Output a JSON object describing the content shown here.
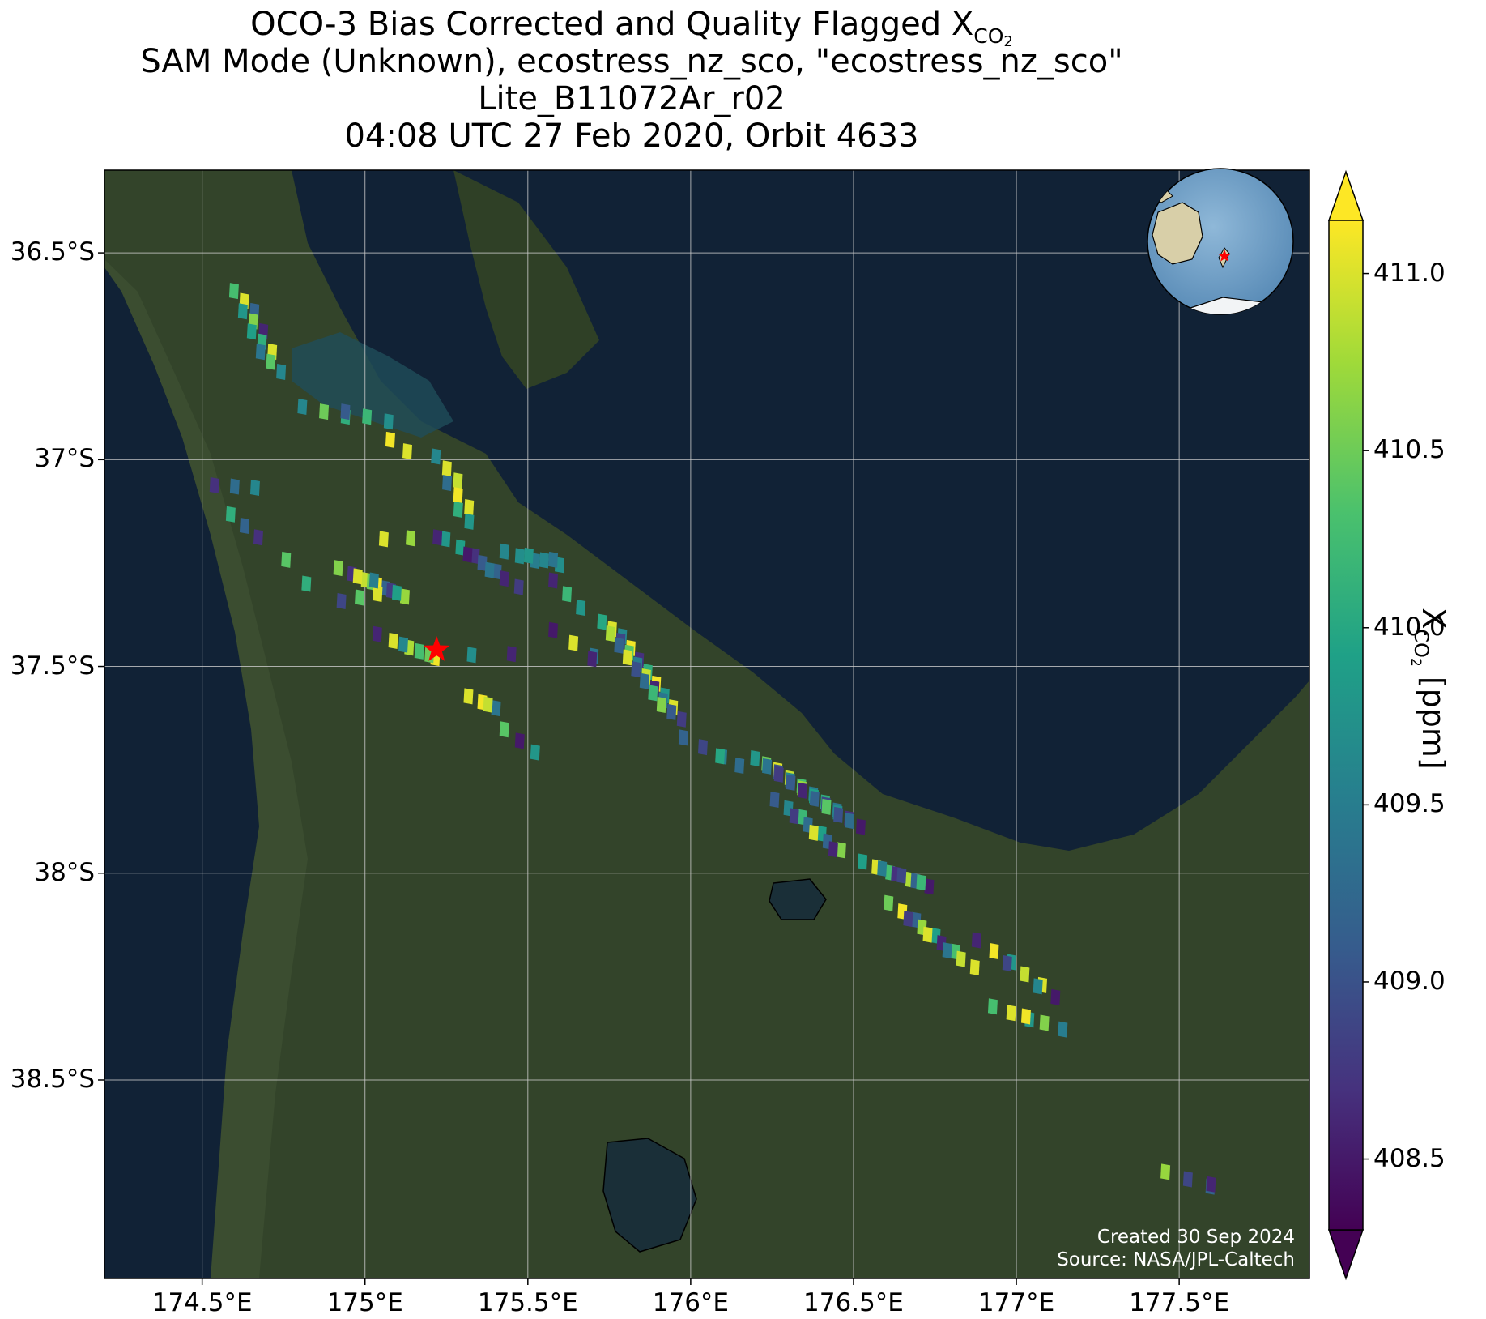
{
  "title": {
    "line1_prefix": "OCO-3 Bias Corrected and Quality Flagged X",
    "line1_sub": "CO",
    "line1_subsub": "2",
    "line2": "SAM Mode (Unknown), ecostress_nz_sco, \"ecostress_nz_sco\"",
    "line3": "Lite_B11072Ar_r02",
    "line4": "04:08 UTC 27 Feb 2020, Orbit 4633"
  },
  "map": {
    "lon_range": [
      174.2,
      177.9
    ],
    "lat_range": [
      -38.98,
      -36.3
    ],
    "x_ticks": [
      {
        "value": 174.5,
        "label": "174.5°E"
      },
      {
        "value": 175.0,
        "label": "175°E"
      },
      {
        "value": 175.5,
        "label": "175.5°E"
      },
      {
        "value": 176.0,
        "label": "176°E"
      },
      {
        "value": 176.5,
        "label": "176.5°E"
      },
      {
        "value": 177.0,
        "label": "177°E"
      },
      {
        "value": 177.5,
        "label": "177.5°E"
      }
    ],
    "y_ticks": [
      {
        "value": -36.5,
        "label": "36.5°S"
      },
      {
        "value": -37.0,
        "label": "37°S"
      },
      {
        "value": -37.5,
        "label": "37.5°S"
      },
      {
        "value": -38.0,
        "label": "38°S"
      },
      {
        "value": -38.5,
        "label": "38.5°S"
      }
    ],
    "grid": true,
    "target": {
      "lon": 175.22,
      "lat": -37.46,
      "color": "#ff0000"
    },
    "colors": {
      "ocean": "#112236",
      "land": "#33442a",
      "gridline": "#cccccc"
    }
  },
  "colorbar": {
    "min": 408.3,
    "max": 411.15,
    "ticks": [
      408.5,
      409.0,
      409.5,
      410.0,
      410.5,
      411.0
    ],
    "tick_labels": [
      "408.5",
      "409.0",
      "409.5",
      "410.0",
      "410.5",
      "411.0"
    ],
    "label_prefix": "X",
    "label_sub": "CO",
    "label_subsub": "2",
    "label_suffix": " [ppm]",
    "colormap": "viridis"
  },
  "inset_globe": {
    "target_color": "#ff0000"
  },
  "credit": {
    "line1": "Created 30 Sep 2024",
    "line2": "Source: NASA/JPL-Caltech"
  },
  "chart_data": {
    "type": "heatmap",
    "variable": "XCO2",
    "units": "ppm",
    "segments": [
      {
        "from": [
          174.62,
          -36.6
        ],
        "to": [
          174.72,
          -36.78
        ],
        "values": [
          410.3,
          411.0,
          409.2,
          409.8,
          410.6,
          408.6,
          409.9,
          410.1,
          411.0,
          409.4,
          410.4,
          409.6
        ]
      },
      {
        "from": [
          174.83,
          -36.88
        ],
        "to": [
          175.05,
          -36.9
        ],
        "values": [
          409.6,
          410.5,
          410.1,
          409.1,
          410.2,
          409.7
        ]
      },
      {
        "from": [
          175.1,
          -36.96
        ],
        "to": [
          175.13,
          -36.98
        ],
        "values": [
          411.1,
          411.0
        ]
      },
      {
        "from": [
          174.56,
          -37.07
        ],
        "to": [
          174.64,
          -37.06
        ],
        "values": [
          408.7,
          409.3,
          409.6
        ]
      },
      {
        "from": [
          174.61,
          -37.14
        ],
        "to": [
          174.65,
          -37.18
        ],
        "values": [
          410.1,
          409.2,
          408.7
        ]
      },
      {
        "from": [
          175.24,
          -37.0
        ],
        "to": [
          175.32,
          -37.15
        ],
        "values": [
          409.6,
          411.0,
          410.9,
          409.3,
          411.1,
          411.0,
          410.1,
          409.8
        ]
      },
      {
        "from": [
          175.27,
          -37.2
        ],
        "to": [
          175.45,
          -37.3
        ],
        "values": [
          409.8,
          409.9,
          408.7,
          408.5,
          409.1,
          409.2,
          409.4,
          408.6,
          408.8
        ]
      },
      {
        "from": [
          175.45,
          -37.23
        ],
        "to": [
          175.6,
          -37.25
        ],
        "values": [
          409.6,
          409.7,
          409.5,
          409.8,
          409.6,
          409.7,
          409.4
        ]
      },
      {
        "from": [
          174.94,
          -37.27
        ],
        "to": [
          175.12,
          -37.33
        ],
        "values": [
          410.6,
          408.7,
          410.9,
          411.0,
          410.5,
          409.2,
          411.1,
          408.8,
          410.7,
          409.9
        ]
      },
      {
        "from": [
          174.95,
          -37.35
        ],
        "to": [
          175.05,
          -37.3
        ],
        "values": [
          408.9,
          410.4,
          411.0,
          409.5
        ]
      },
      {
        "from": [
          174.78,
          -37.25
        ],
        "to": [
          174.82,
          -37.3
        ],
        "values": [
          410.4,
          410.1
        ]
      },
      {
        "from": [
          175.08,
          -37.2
        ],
        "to": [
          175.2,
          -37.18
        ],
        "values": [
          411.0,
          410.7,
          408.6
        ]
      },
      {
        "from": [
          175.06,
          -37.43
        ],
        "to": [
          175.22,
          -37.48
        ],
        "values": [
          408.6,
          411.0,
          410.8,
          409.6,
          410.3,
          411.1,
          410.5
        ]
      },
      {
        "from": [
          175.35,
          -37.48
        ],
        "to": [
          175.45,
          -37.47
        ],
        "values": [
          409.7,
          408.6
        ]
      },
      {
        "from": [
          175.34,
          -37.58
        ],
        "to": [
          175.4,
          -37.6
        ],
        "values": [
          411.0,
          411.1,
          409.4,
          410.9
        ]
      },
      {
        "from": [
          175.45,
          -37.66
        ],
        "to": [
          175.5,
          -37.7
        ],
        "values": [
          410.4,
          408.5,
          409.8
        ]
      },
      {
        "from": [
          175.6,
          -37.3
        ],
        "to": [
          175.64,
          -37.35
        ],
        "values": [
          408.6,
          410.2,
          409.8
        ]
      },
      {
        "from": [
          175.6,
          -37.42
        ],
        "to": [
          175.72,
          -37.49
        ],
        "values": [
          408.5,
          411.0,
          409.4,
          408.6
        ]
      },
      {
        "from": [
          175.75,
          -37.4
        ],
        "to": [
          175.95,
          -37.62
        ],
        "values": [
          410.0,
          411.0,
          409.6,
          410.8,
          408.9,
          411.1,
          409.2,
          410.4,
          408.7,
          411.0,
          409.5,
          410.1,
          409.0,
          410.9,
          411.1,
          409.3,
          408.6,
          409.8,
          410.2,
          409.4,
          411.0,
          410.6,
          409.1,
          408.8
        ]
      },
      {
        "from": [
          176.0,
          -37.68
        ],
        "to": [
          176.15,
          -37.74
        ],
        "values": [
          409.2,
          408.9,
          409.5,
          410.0,
          409.3
        ]
      },
      {
        "from": [
          176.22,
          -37.73
        ],
        "to": [
          176.5,
          -37.88
        ],
        "values": [
          409.8,
          410.5,
          411.0,
          409.4,
          409.0,
          410.9,
          408.8,
          409.6,
          410.3,
          409.1,
          410.7,
          409.5,
          408.6,
          409.9,
          410.1,
          409.2,
          408.9,
          409.4,
          410.4,
          409.7,
          408.7,
          409.0,
          409.3,
          408.5
        ]
      },
      {
        "from": [
          176.28,
          -37.83
        ],
        "to": [
          176.46,
          -37.95
        ],
        "values": [
          409.1,
          409.6,
          410.2,
          408.8,
          409.3,
          409.9,
          411.0,
          409.2,
          410.6,
          408.6
        ]
      },
      {
        "from": [
          176.55,
          -37.98
        ],
        "to": [
          176.73,
          -38.03
        ],
        "values": [
          409.9,
          411.0,
          410.3,
          409.5,
          408.7,
          410.8,
          408.9,
          409.2,
          408.5,
          410.2
        ]
      },
      {
        "from": [
          176.63,
          -38.08
        ],
        "to": [
          176.85,
          -38.22
        ],
        "values": [
          410.5,
          411.1,
          409.2,
          408.8,
          410.7,
          409.9,
          411.0,
          408.6,
          410.3,
          409.4,
          410.9,
          411.0
        ]
      },
      {
        "from": [
          176.9,
          -38.17
        ],
        "to": [
          177.12,
          -38.3
        ],
        "values": [
          408.6,
          411.1,
          409.8,
          408.9,
          410.9,
          411.0,
          409.6,
          408.5
        ]
      },
      {
        "from": [
          176.95,
          -38.33
        ],
        "to": [
          177.12,
          -38.37
        ],
        "values": [
          410.3,
          411.0,
          409.8,
          411.1,
          410.6,
          409.5
        ]
      },
      {
        "from": [
          177.48,
          -38.73
        ],
        "to": [
          177.62,
          -38.76
        ],
        "values": [
          410.7,
          408.9,
          409.2,
          408.6
        ]
      }
    ]
  }
}
